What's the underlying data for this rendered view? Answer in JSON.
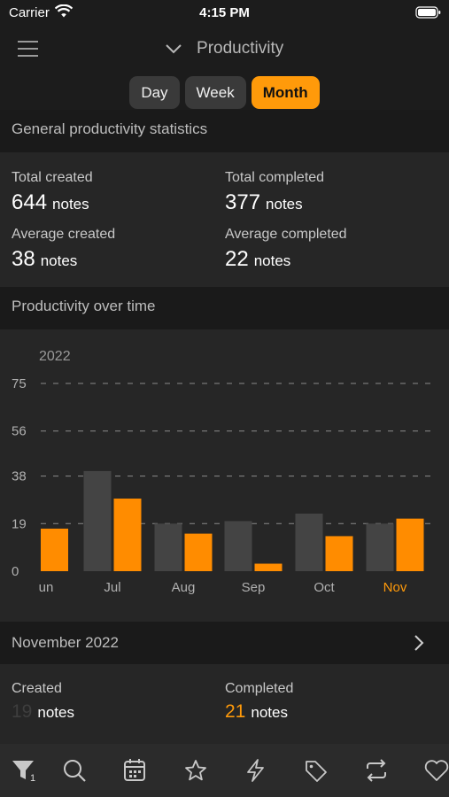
{
  "status": {
    "carrier": "Carrier",
    "time": "4:15 PM"
  },
  "nav": {
    "title": "Productivity"
  },
  "segments": [
    {
      "label": "Day",
      "active": false
    },
    {
      "label": "Week",
      "active": false
    },
    {
      "label": "Month",
      "active": true
    }
  ],
  "general": {
    "header": "General productivity statistics",
    "total_created": {
      "label": "Total created",
      "value": "644",
      "unit": "notes"
    },
    "total_completed": {
      "label": "Total completed",
      "value": "377",
      "unit": "notes"
    },
    "average_created": {
      "label": "Average created",
      "value": "38",
      "unit": "notes"
    },
    "average_completed": {
      "label": "Average completed",
      "value": "22",
      "unit": "notes"
    }
  },
  "over_time": {
    "header": "Productivity over time"
  },
  "chart_data": {
    "type": "bar",
    "year": "2022",
    "categories": [
      "un",
      "Jul",
      "Aug",
      "Sep",
      "Oct",
      "Nov"
    ],
    "highlighted_category": "Nov",
    "yticks": [
      0,
      19,
      38,
      56,
      75
    ],
    "ylim": [
      0,
      75
    ],
    "series": [
      {
        "values": [
          null,
          40,
          19,
          20,
          23,
          19
        ],
        "color": "#444444"
      },
      {
        "values": [
          17,
          29,
          15,
          3,
          14,
          21
        ],
        "color": "#ff8c00"
      }
    ],
    "grid": "dashed horizontal"
  },
  "month_summary": {
    "header": "November 2022",
    "created": {
      "label": "Created",
      "value": "19",
      "unit": "notes"
    },
    "completed": {
      "label": "Completed",
      "value": "21",
      "unit": "notes"
    }
  },
  "tabbar": {
    "filter_badge": "1",
    "icons": [
      "filter-icon",
      "search-icon",
      "calendar-icon",
      "star-icon",
      "lightning-icon",
      "tag-icon",
      "repeat-icon",
      "heart-icon"
    ]
  },
  "colors": {
    "accent": "#ff9a0a",
    "background": "#1c1c1c",
    "card": "#262626"
  }
}
